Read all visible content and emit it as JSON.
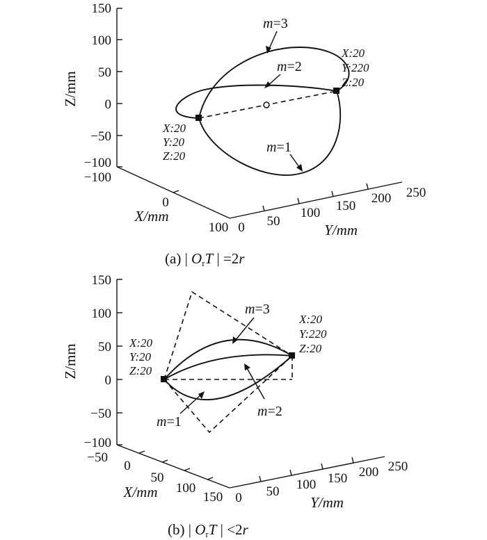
{
  "chart_data": [
    {
      "type": "line",
      "subtitle": "(a)  | O_rT | =2r",
      "caption": {
        "prefix": "(a)  ",
        "bar_left": "| ",
        "O": "O",
        "sub": "r",
        "T": "T",
        "bar_right": " |",
        "rel": " =2",
        "r": "r"
      },
      "xlabel": "X/mm",
      "ylabel": "Y/mm",
      "zlabel": "Z/mm",
      "x_ticks": [
        "−100",
        "0",
        "100"
      ],
      "y_ticks": [
        "0",
        "50",
        "100",
        "150",
        "200",
        "250"
      ],
      "z_ticks": [
        "150",
        "100",
        "50",
        "0",
        "−50",
        "−100"
      ],
      "xlim": [
        -100,
        100
      ],
      "ylim": [
        0,
        250
      ],
      "zlim": [
        -100,
        150
      ],
      "grid": false,
      "series": [
        {
          "name": "m=3",
          "label": "m=3",
          "style": "solid"
        },
        {
          "name": "m=2",
          "label": "m=2",
          "style": "solid"
        },
        {
          "name": "m=1",
          "label": "m=1",
          "style": "solid"
        },
        {
          "name": "chord",
          "style": "dashed"
        }
      ],
      "points": [
        {
          "name": "start",
          "x": 20,
          "y": 20,
          "z": 20,
          "lines": [
            "X:20",
            "Y:20",
            "Z:20"
          ]
        },
        {
          "name": "end",
          "x": 20,
          "y": 220,
          "z": 20,
          "lines": [
            "X:20",
            "Y:220",
            "Z:20"
          ]
        }
      ]
    },
    {
      "type": "line",
      "subtitle": "(b)  | O_rT | <2r",
      "caption": {
        "prefix": "(b)  ",
        "bar_left": "| ",
        "O": "O",
        "sub": "r",
        "T": "T",
        "bar_right": " |",
        "rel": " <2",
        "r": "r"
      },
      "xlabel": "X/mm",
      "ylabel": "Y/mm",
      "zlabel": "Z/mm",
      "x_ticks": [
        "−50",
        "0",
        "50",
        "100",
        "150"
      ],
      "y_ticks": [
        "0",
        "50",
        "100",
        "150",
        "200",
        "250"
      ],
      "z_ticks": [
        "150",
        "100",
        "50",
        "0",
        "−50",
        "−100"
      ],
      "xlim": [
        -50,
        150
      ],
      "ylim": [
        0,
        250
      ],
      "zlim": [
        -100,
        150
      ],
      "grid": false,
      "series": [
        {
          "name": "m=3",
          "label": "m=3",
          "style": "solid"
        },
        {
          "name": "m=2",
          "label": "m=2",
          "style": "solid"
        },
        {
          "name": "m=1",
          "label": "m=1",
          "style": "solid"
        },
        {
          "name": "construction",
          "style": "dashed"
        }
      ],
      "points": [
        {
          "name": "start",
          "x": 20,
          "y": 20,
          "z": 20,
          "lines": [
            "X:20",
            "Y:20",
            "Z:20"
          ]
        },
        {
          "name": "end",
          "x": 20,
          "y": 220,
          "z": 20,
          "lines": [
            "X:20",
            "Y:220",
            "Z:20"
          ]
        }
      ]
    }
  ]
}
